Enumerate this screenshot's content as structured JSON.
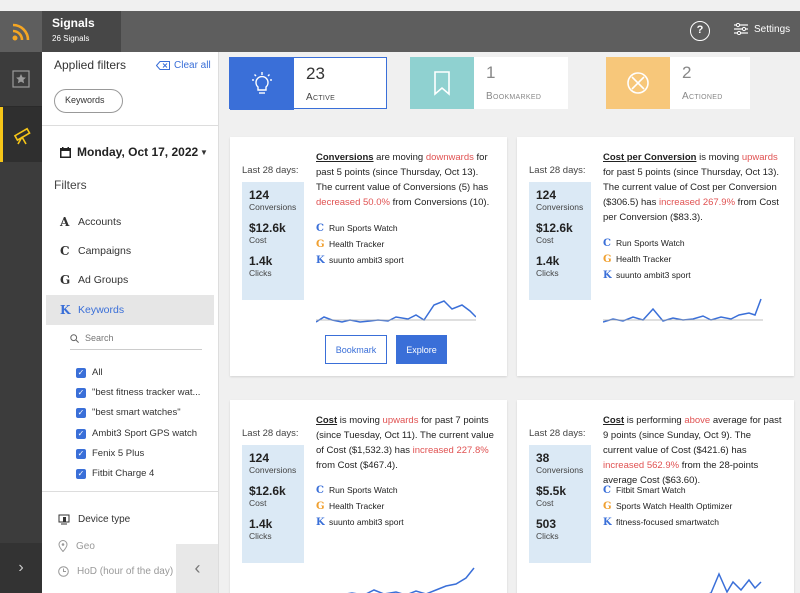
{
  "header": {
    "title": "Signals",
    "subtitle": "26 Signals",
    "settings_label": "Settings",
    "help_glyph": "?"
  },
  "filters": {
    "applied_label": "Applied filters",
    "clear_all": "Clear all",
    "chip": "Keywords",
    "date": "Monday, Oct 17, 2022",
    "filters_label": "Filters",
    "nav": [
      {
        "glyph": "A",
        "label": "Accounts"
      },
      {
        "glyph": "C",
        "label": "Campaigns"
      },
      {
        "glyph": "G",
        "label": "Ad Groups"
      },
      {
        "glyph": "K",
        "label": "Keywords"
      }
    ],
    "search_placeholder": "Search",
    "checkboxes": [
      "All",
      "\"best fitness tracker wat...",
      "\"best smart watches\"",
      "Ambit3 Sport GPS watch",
      "Fenix 5 Plus",
      "Fitbit Charge 4"
    ],
    "sub": [
      {
        "label": "Device type"
      },
      {
        "label": "Geo"
      },
      {
        "label": "HoD (hour of the day)"
      }
    ]
  },
  "stats": [
    {
      "value": "23",
      "label": "Active",
      "color": "#3a6fd8"
    },
    {
      "value": "1",
      "label": "Bookmarked",
      "color": "#8fd1d0"
    },
    {
      "value": "2",
      "label": "Actioned",
      "color": "#f7c77a"
    }
  ],
  "cards": [
    {
      "last28": "Last 28 days:",
      "m": [
        {
          "v": "124",
          "n": "Conversions"
        },
        {
          "v": "$12.6k",
          "n": "Cost"
        },
        {
          "v": "1.4k",
          "n": "Clicks"
        }
      ],
      "d1": "Conversions",
      "d2": " are moving ",
      "d3": "downwards",
      "d4": " for past 5 points (since Thursday, Oct 13). The current value of Conversions (5) has ",
      "d5": "decreased 50.0%",
      "d6": " from Conversions (10).",
      "ents": [
        {
          "g": "C",
          "t": "Run Sports Watch",
          "c": "#3a6fd8"
        },
        {
          "g": "G",
          "t": "Health Tracker",
          "c": "#f0a030"
        },
        {
          "g": "K",
          "t": "suunto ambit3 sport",
          "c": "#3a6fd8"
        }
      ],
      "bookmark": "Bookmark",
      "explore": "Explore"
    },
    {
      "last28": "Last 28 days:",
      "m": [
        {
          "v": "124",
          "n": "Conversions"
        },
        {
          "v": "$12.6k",
          "n": "Cost"
        },
        {
          "v": "1.4k",
          "n": "Clicks"
        }
      ],
      "d1": "Cost per Conversion",
      "d2": " is moving ",
      "d3": "upwards",
      "d4": " for past 5 points (since Thursday, Oct 13). The current value of Cost per Conversion ($306.5) has ",
      "d5": "increased 267.9%",
      "d6": " from Cost per Conversion ($83.3).",
      "ents": [
        {
          "g": "C",
          "t": "Run Sports Watch",
          "c": "#3a6fd8"
        },
        {
          "g": "G",
          "t": "Health Tracker",
          "c": "#f0a030"
        },
        {
          "g": "K",
          "t": "suunto ambit3 sport",
          "c": "#3a6fd8"
        }
      ]
    },
    {
      "last28": "Last 28 days:",
      "m": [
        {
          "v": "124",
          "n": "Conversions"
        },
        {
          "v": "$12.6k",
          "n": "Cost"
        },
        {
          "v": "1.4k",
          "n": "Clicks"
        }
      ],
      "d1": "Cost",
      "d2": " is moving ",
      "d3": "upwards",
      "d4": " for past 7 points (since Tuesday, Oct 11). The current value of Cost ($1,532.3) has ",
      "d5": "increased 227.8%",
      "d6": " from Cost ($467.4).",
      "ents": [
        {
          "g": "C",
          "t": "Run Sports Watch",
          "c": "#3a6fd8"
        },
        {
          "g": "G",
          "t": "Health Tracker",
          "c": "#f0a030"
        },
        {
          "g": "K",
          "t": "suunto ambit3 sport",
          "c": "#3a6fd8"
        }
      ]
    },
    {
      "last28": "Last 28 days:",
      "m": [
        {
          "v": "38",
          "n": "Conversions"
        },
        {
          "v": "$5.5k",
          "n": "Cost"
        },
        {
          "v": "503",
          "n": "Clicks"
        }
      ],
      "d1": "Cost",
      "d2": " is performing ",
      "d3": "above",
      "d4": " average for past 9 points (since Sunday, Oct 9). The current value of Cost ($421.6) has ",
      "d5": "increased 562.9%",
      "d6": " from the 28-points average Cost ($63.60).",
      "ents": [
        {
          "g": "C",
          "t": "Fitbit Smart Watch",
          "c": "#3a6fd8"
        },
        {
          "g": "G",
          "t": "Sports Watch Health Optimizer",
          "c": "#f0a030"
        },
        {
          "g": "K",
          "t": "fitness-focused smartwatch",
          "c": "#3a6fd8"
        }
      ]
    }
  ]
}
